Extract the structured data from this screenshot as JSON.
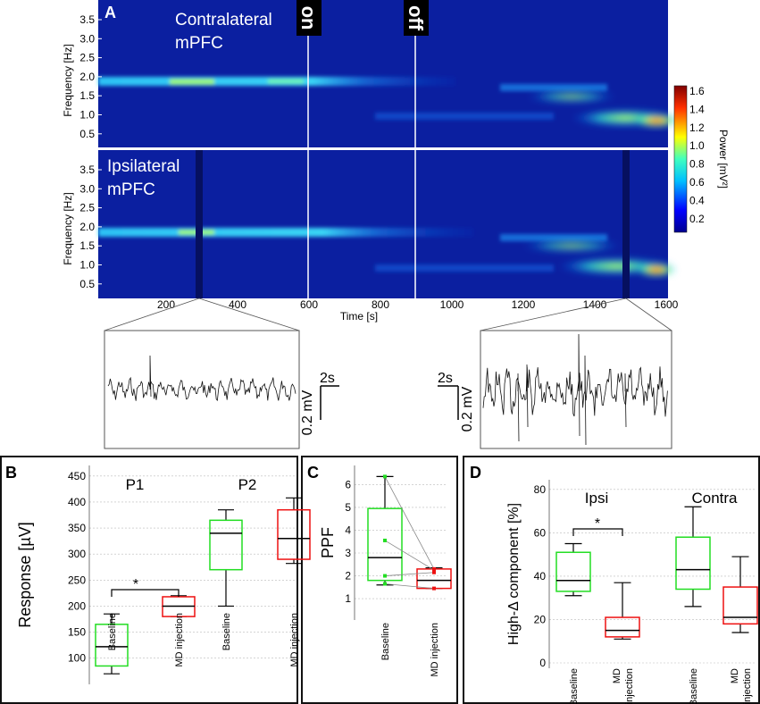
{
  "colors": {
    "spectro_bg": "#0b1fa0",
    "baseline_box": "#22dd22",
    "md_box": "#ee1111",
    "panel_border": "#111111",
    "label_bg": "#000000"
  },
  "panel_a": {
    "letter": "A",
    "top_label_1": "Contralateral",
    "top_label_2": "mPFC",
    "bottom_label_1": "Ipsilateral",
    "bottom_label_2": "mPFC",
    "on_label": "on",
    "off_label": "off",
    "y_axis_label": "Frequency [Hz]",
    "x_axis_label": "Time [s]",
    "y_ticks": [
      "3.5",
      "3.0",
      "2.5",
      "2.0",
      "1.5",
      "1.0",
      "0.5"
    ],
    "x_ticks": [
      "200",
      "400",
      "600",
      "800",
      "1000",
      "1200",
      "1400",
      "1600"
    ],
    "colorbar_label": "Power [mV²]",
    "colorbar_ticks": [
      "1.6",
      "1.4",
      "1.2",
      "1.0",
      "0.8",
      "0.6",
      "0.4",
      "0.2"
    ],
    "trace_left_scale_time": "2s",
    "trace_left_scale_volt": "0.2 mV",
    "trace_right_scale_time": "2s",
    "trace_right_scale_volt": "0.2 mV"
  },
  "chart_data": [
    {
      "panel": "B",
      "type": "box",
      "ylabel": "Response [µV]",
      "ylim": [
        60,
        460
      ],
      "yticks": [
        "450",
        "400",
        "350",
        "300",
        "250",
        "200",
        "150",
        "100"
      ],
      "group_labels": [
        "P1",
        "P2"
      ],
      "significance": "*",
      "categories": [
        "Baseline",
        "MD injection",
        "Baseline",
        "MD injection"
      ],
      "boxes": [
        {
          "name": "P1 Baseline",
          "min": 70,
          "q1": 85,
          "median": 122,
          "q3": 165,
          "max": 185
        },
        {
          "name": "P1 MD injection",
          "min": 180,
          "q1": 180,
          "median": 200,
          "q3": 218,
          "max": 220
        },
        {
          "name": "P2 Baseline",
          "min": 200,
          "q1": 270,
          "median": 340,
          "q3": 365,
          "max": 385
        },
        {
          "name": "P2 MD injection",
          "min": 282,
          "q1": 290,
          "median": 330,
          "q3": 385,
          "max": 408
        }
      ]
    },
    {
      "panel": "C",
      "type": "box",
      "ylabel": "PPF",
      "ylim": [
        0.3,
        6.6
      ],
      "yticks": [
        "6",
        "5",
        "4",
        "3",
        "2",
        "1"
      ],
      "categories": [
        "Baseline",
        "MD injection"
      ],
      "boxes": [
        {
          "name": "Baseline",
          "min": 1.6,
          "q1": 1.8,
          "median": 2.8,
          "q3": 4.95,
          "max": 6.35
        },
        {
          "name": "MD injection",
          "min": 1.45,
          "q1": 1.45,
          "median": 1.8,
          "q3": 2.3,
          "max": 2.35
        }
      ],
      "paired_points": [
        {
          "baseline": 6.35,
          "md": 2.3
        },
        {
          "baseline": 3.55,
          "md": 2.25
        },
        {
          "baseline": 2.0,
          "md": 2.15
        },
        {
          "baseline": 1.65,
          "md": 1.45
        }
      ]
    },
    {
      "panel": "D",
      "type": "box",
      "ylabel": "High-Δ component [%]",
      "ylim": [
        0,
        82
      ],
      "yticks": [
        "80",
        "60",
        "40",
        "20",
        "0"
      ],
      "group_labels": [
        "Ipsi",
        "Contra"
      ],
      "significance": "*",
      "categories": [
        "Baseline",
        "MD injection",
        "Baseline",
        "MD injection"
      ],
      "boxes": [
        {
          "name": "Ipsi Baseline",
          "min": 31,
          "q1": 33,
          "median": 38,
          "q3": 51,
          "max": 55
        },
        {
          "name": "Ipsi MD injection",
          "min": 11,
          "q1": 12,
          "median": 15,
          "q3": 21,
          "max": 37
        },
        {
          "name": "Contra Baseline",
          "min": 26,
          "q1": 34,
          "median": 43,
          "q3": 58,
          "max": 72
        },
        {
          "name": "Contra MD injection",
          "min": 14,
          "q1": 18,
          "median": 21,
          "q3": 35,
          "max": 49
        }
      ]
    }
  ]
}
